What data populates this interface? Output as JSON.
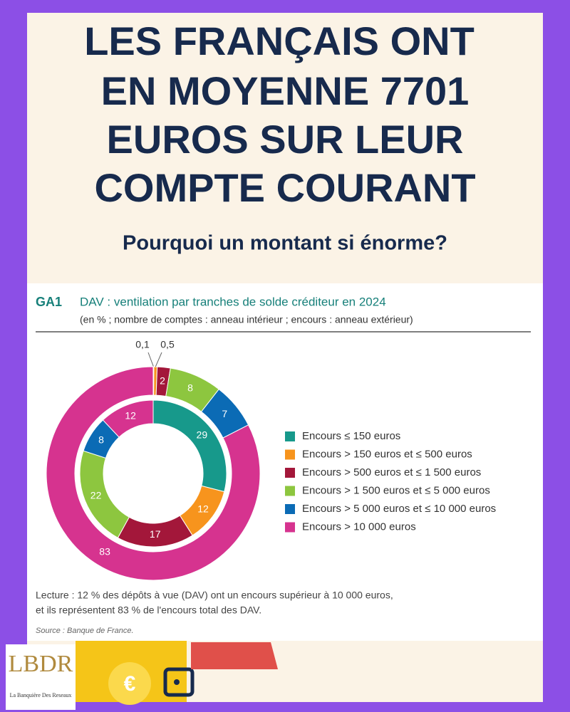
{
  "header": {
    "title_lines": [
      "LES FRANÇAIS ONT",
      "EN MOYENNE 7701",
      "EUROS SUR LEUR",
      "COMPTE COURANT"
    ],
    "subtitle": "Pourquoi un montant si énorme?"
  },
  "chart_data": {
    "type": "donut",
    "label": "GA1",
    "title": "DAV : ventilation par tranches de solde créditeur en 2024",
    "subtitle": "(en % ; nombre de comptes : anneau intérieur ; encours : anneau extérieur)",
    "categories": [
      "Encours ≤ 150 euros",
      "Encours > 150 euros et ≤ 500 euros",
      "Encours > 500 euros et ≤ 1 500 euros",
      "Encours > 1 500 euros et ≤ 5 000 euros",
      "Encours > 5 000 euros et ≤ 10 000 euros",
      "Encours > 10 000 euros"
    ],
    "colors": [
      "#17998b",
      "#f7941d",
      "#a3173a",
      "#8dc63f",
      "#0b6bb5",
      "#d6338f"
    ],
    "series": [
      {
        "values": [
          29,
          12,
          17,
          22,
          8,
          12
        ]
      },
      {
        "values": [
          0.1,
          0.5,
          2,
          8,
          7,
          83
        ],
        "value_labels": [
          "0,1",
          "0,5",
          "2",
          "8",
          "7",
          "83"
        ]
      }
    ],
    "note_lines": [
      "Lecture : 12 % des dépôts à vue (DAV) ont un encours supérieur à 10 000 euros,",
      "et ils représentent 83 % de l'encours total des DAV."
    ],
    "source": "Source : Banque de France."
  },
  "logo": {
    "monogram": "LBDR",
    "name": "La Banquière Des Reseaux"
  },
  "coin_symbol": "€"
}
